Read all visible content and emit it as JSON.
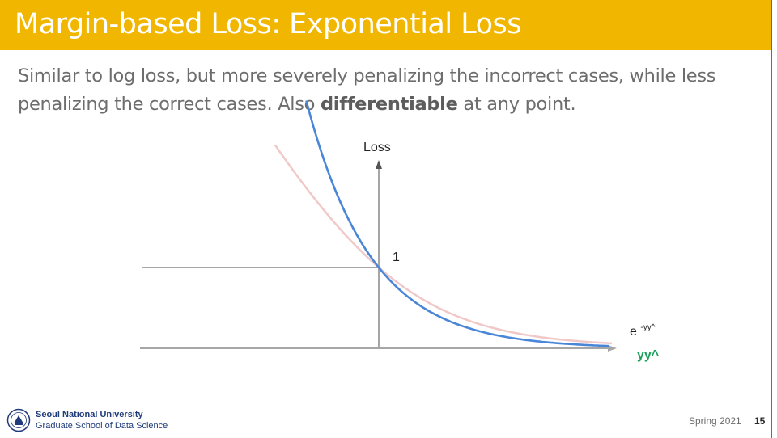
{
  "slide": {
    "title": "Margin-based Loss: Exponential Loss",
    "body_before": "Similar to log loss, but more severely penalizing the incorrect cases, while less penalizing the correct cases. Also ",
    "body_bold": "differentiable",
    "body_after": " at any point."
  },
  "chart_data": {
    "type": "line",
    "title": "",
    "ylabel": "Loss",
    "xlabel": "yy^",
    "point_label": "1",
    "series": [
      {
        "name": "e^-yy^",
        "color": "#4a86d8"
      },
      {
        "color": "#f0c8c8"
      }
    ],
    "series_label": {
      "base": "e",
      "superscript": "-yy^"
    },
    "colors": {
      "xlabel": "#1aa05a",
      "axis": "#a6a6a6",
      "reference_line": "#a6a6a6"
    }
  },
  "footer": {
    "university": "Seoul National University",
    "school": "Graduate School of Data Science",
    "date": "Spring 2021",
    "page": "15"
  }
}
